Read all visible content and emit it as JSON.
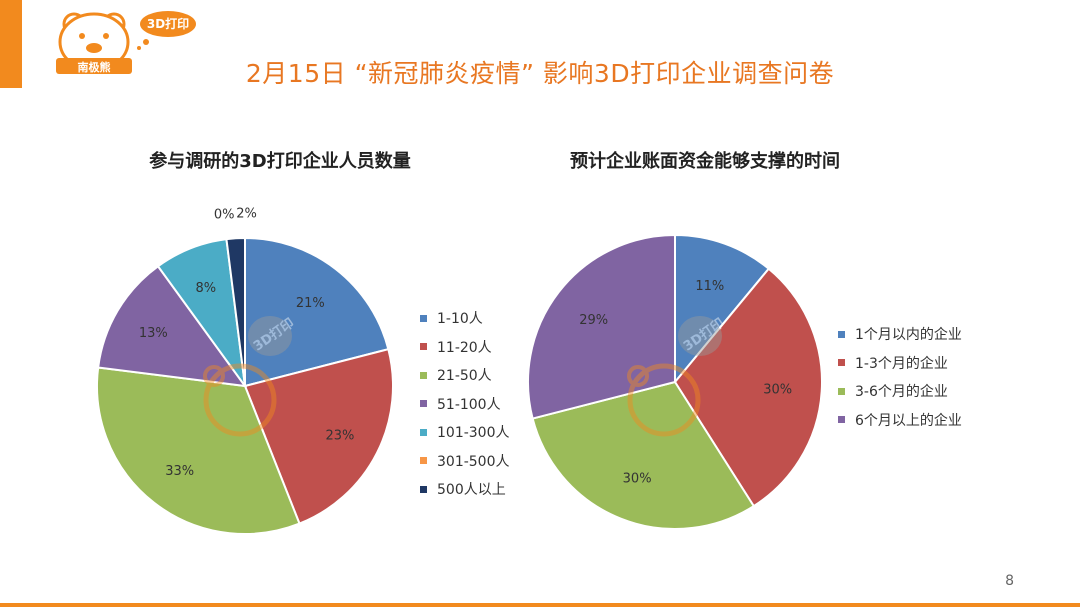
{
  "slide": {
    "title": "2月15日 “新冠肺炎疫情” 影响3D打印企业调查问卷",
    "page_number": "8"
  },
  "logo": {
    "brand_text": "南极熊",
    "bubble_text": "3D打印"
  },
  "watermark_text": "3D打印",
  "colors": {
    "accent": "#f28a1e",
    "title": "#e87722"
  },
  "chart_data": [
    {
      "type": "pie",
      "title": "参与调研的3D打印企业人员数量",
      "categories": [
        "1-10人",
        "11-20人",
        "21-50人",
        "51-100人",
        "101-300人",
        "301-500人",
        "500人以上"
      ],
      "values": [
        21,
        23,
        33,
        13,
        8,
        0,
        2
      ],
      "labels": [
        "21%",
        "23%",
        "33%",
        "13%",
        "8%",
        "0%",
        "2%"
      ],
      "colors": [
        "#4f81bd",
        "#c0504d",
        "#9bbb59",
        "#8064a2",
        "#4bacc6",
        "#f79646",
        "#1f3864"
      ],
      "legend": "right"
    },
    {
      "type": "pie",
      "title": "预计企业账面资金能够支撑的时间",
      "categories": [
        "1个月以内的企业",
        "1-3个月的企业",
        "3-6个月的企业",
        "6个月以上的企业"
      ],
      "values": [
        11,
        30,
        30,
        29
      ],
      "labels": [
        "11%",
        "30%",
        "30%",
        "29%"
      ],
      "colors": [
        "#4f81bd",
        "#c0504d",
        "#9bbb59",
        "#8064a2"
      ],
      "legend": "right"
    }
  ]
}
